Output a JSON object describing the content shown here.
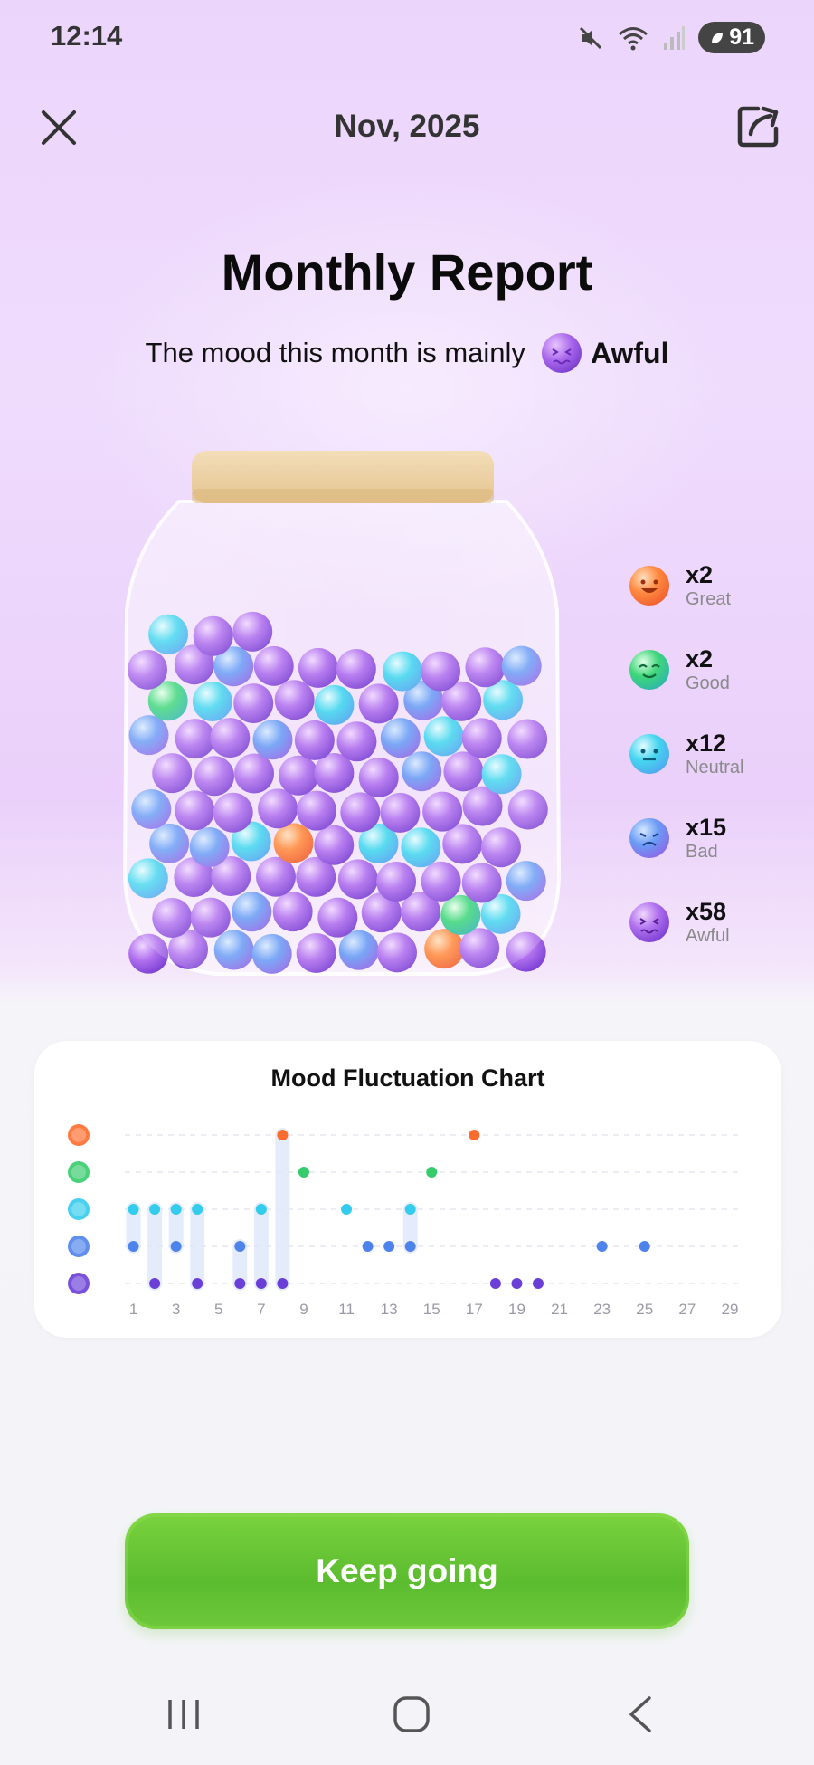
{
  "status_bar": {
    "time": "12:14",
    "battery": "91"
  },
  "header": {
    "title": "Nov, 2025"
  },
  "report": {
    "title": "Monthly Report",
    "mood_prefix": "The mood this month is mainly",
    "mood_value": "Awful"
  },
  "legend": [
    {
      "count": "x2",
      "label": "Great",
      "color": "#ff7a3c"
    },
    {
      "count": "x2",
      "label": "Good",
      "color": "#3fd27a"
    },
    {
      "count": "x12",
      "label": "Neutral",
      "color": "#2fd3ea"
    },
    {
      "count": "x15",
      "label": "Bad",
      "color": "#5a8cf0"
    },
    {
      "count": "x58",
      "label": "Awful",
      "color": "#9a5be0"
    }
  ],
  "chart_data": {
    "type": "scatter",
    "title": "Mood Fluctuation Chart",
    "y_levels": [
      "Great",
      "Good",
      "Neutral",
      "Bad",
      "Awful"
    ],
    "level_colors": {
      "Great": "#ff6d2e",
      "Good": "#36cc6c",
      "Neutral": "#33ccec",
      "Bad": "#4f83ec",
      "Awful": "#6a3fd8"
    },
    "x_ticks": [
      "1",
      "3",
      "5",
      "7",
      "9",
      "11",
      "13",
      "15",
      "17",
      "19",
      "21",
      "23",
      "25",
      "27",
      "29"
    ],
    "points": [
      {
        "day": 1,
        "mood": "Neutral"
      },
      {
        "day": 1,
        "mood": "Bad"
      },
      {
        "day": 2,
        "mood": "Neutral"
      },
      {
        "day": 2,
        "mood": "Awful"
      },
      {
        "day": 3,
        "mood": "Neutral"
      },
      {
        "day": 3,
        "mood": "Bad"
      },
      {
        "day": 4,
        "mood": "Neutral"
      },
      {
        "day": 4,
        "mood": "Awful"
      },
      {
        "day": 6,
        "mood": "Bad"
      },
      {
        "day": 6,
        "mood": "Awful"
      },
      {
        "day": 7,
        "mood": "Neutral"
      },
      {
        "day": 7,
        "mood": "Awful"
      },
      {
        "day": 8,
        "mood": "Great"
      },
      {
        "day": 8,
        "mood": "Awful"
      },
      {
        "day": 9,
        "mood": "Good"
      },
      {
        "day": 11,
        "mood": "Neutral"
      },
      {
        "day": 12,
        "mood": "Bad"
      },
      {
        "day": 13,
        "mood": "Bad"
      },
      {
        "day": 14,
        "mood": "Neutral"
      },
      {
        "day": 14,
        "mood": "Bad"
      },
      {
        "day": 15,
        "mood": "Good"
      },
      {
        "day": 17,
        "mood": "Great"
      },
      {
        "day": 18,
        "mood": "Awful"
      },
      {
        "day": 19,
        "mood": "Awful"
      },
      {
        "day": 20,
        "mood": "Awful"
      },
      {
        "day": 23,
        "mood": "Bad"
      },
      {
        "day": 25,
        "mood": "Bad"
      }
    ],
    "xlim": [
      1,
      30
    ],
    "grid": true
  },
  "button": {
    "label": "Keep going"
  }
}
